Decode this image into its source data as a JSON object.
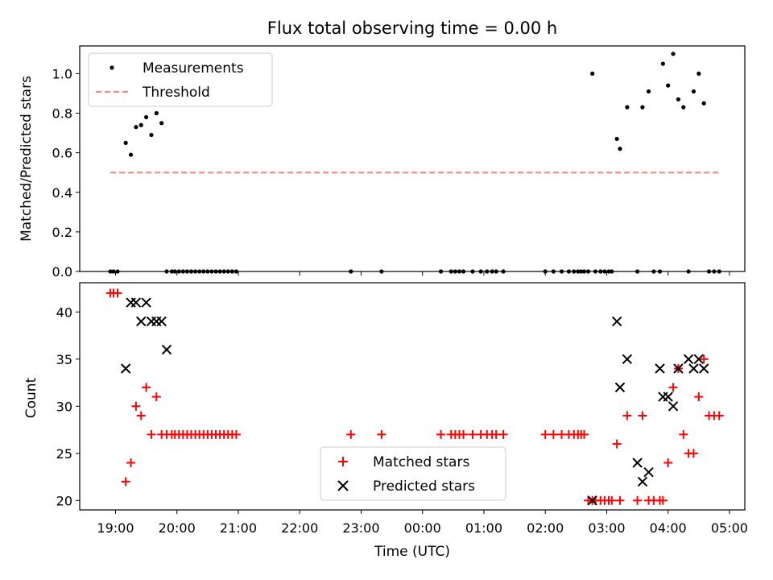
{
  "chart_data": [
    {
      "type": "scatter",
      "title": "Flux total observing time = 0.00 h",
      "xlabel": "",
      "ylabel": "Matched/Predicted stars",
      "xlim": [
        "2000-01-01 18:25",
        "2000-01-02 05:15"
      ],
      "ylim": [
        0,
        1.14
      ],
      "yticks": [
        0.0,
        0.2,
        0.4,
        0.6,
        0.8,
        1.0
      ],
      "ytick_labels": [
        "0.0",
        "0.2",
        "0.4",
        "0.6",
        "0.8",
        "1.0"
      ],
      "grid": false,
      "legend": "top-left",
      "series": [
        {
          "name": "Measurements",
          "kind": "points",
          "color": "#000000",
          "x": [
            "18:55",
            "18:58",
            "19:02",
            "19:10",
            "19:15",
            "19:20",
            "19:25",
            "19:30",
            "19:35",
            "19:40",
            "19:45",
            "19:50",
            "19:55",
            "19:58",
            "20:02",
            "20:06",
            "20:10",
            "20:14",
            "20:18",
            "20:22",
            "20:26",
            "20:30",
            "20:34",
            "20:38",
            "20:42",
            "20:46",
            "20:50",
            "20:54",
            "20:58",
            "22:50",
            "23:20",
            "00:18",
            "00:28",
            "00:32",
            "00:36",
            "00:40",
            "00:49",
            "00:57",
            "01:03",
            "01:08",
            "01:12",
            "01:19",
            "02:00",
            "02:08",
            "02:16",
            "02:23",
            "02:28",
            "02:32",
            "02:35",
            "02:38",
            "02:42",
            "02:46",
            "02:49",
            "02:54",
            "02:58",
            "03:02",
            "03:05",
            "03:10",
            "03:13",
            "03:20",
            "03:30",
            "03:35",
            "03:41",
            "03:46",
            "03:52",
            "03:55",
            "04:00",
            "04:05",
            "04:10",
            "04:15",
            "04:20",
            "04:25",
            "04:30",
            "04:35",
            "04:40",
            "04:45",
            "04:50"
          ],
          "y": [
            0,
            0,
            0,
            0.65,
            0.59,
            0.73,
            0.74,
            0.78,
            0.69,
            0.8,
            0.75,
            0,
            0,
            0,
            0,
            0,
            0,
            0,
            0,
            0,
            0,
            0,
            0,
            0,
            0,
            0,
            0,
            0,
            0,
            0,
            0,
            0,
            0,
            0,
            0,
            0,
            0,
            0,
            0,
            0,
            0,
            0,
            0,
            0,
            0,
            0,
            0,
            0,
            0,
            0,
            0,
            1.0,
            0,
            0,
            0,
            0,
            0,
            0.67,
            0.62,
            0.83,
            0,
            0.83,
            0.91,
            0,
            0,
            1.05,
            0.94,
            1.1,
            0.87,
            0.83,
            0,
            0.91,
            1.0,
            0.85,
            0,
            0,
            0
          ]
        },
        {
          "name": "Threshold",
          "kind": "dashed-line",
          "color": "#ff7f7f",
          "x": [
            "18:55",
            "04:50"
          ],
          "y": [
            0.5,
            0.5
          ]
        }
      ]
    },
    {
      "type": "scatter",
      "title": "",
      "xlabel": "Time (UTC)",
      "ylabel": "Count",
      "xlim": [
        "2000-01-01 18:25",
        "2000-01-02 05:15"
      ],
      "ylim": [
        19.0,
        43.1
      ],
      "yticks": [
        20,
        25,
        30,
        35,
        40
      ],
      "ytick_labels": [
        "20",
        "25",
        "30",
        "35",
        "40"
      ],
      "xticks": [
        "2000-01-01 19:00",
        "2000-01-01 20:00",
        "2000-01-01 21:00",
        "2000-01-01 22:00",
        "2000-01-01 23:00",
        "2000-01-02 00:00",
        "2000-01-02 01:00",
        "2000-01-02 02:00",
        "2000-01-02 03:00",
        "2000-01-02 04:00",
        "2000-01-02 05:00"
      ],
      "xtick_labels": [
        "19:00",
        "20:00",
        "21:00",
        "22:00",
        "23:00",
        "00:00",
        "01:00",
        "02:00",
        "03:00",
        "04:00",
        "05:00"
      ],
      "grid": false,
      "legend": "lower-center",
      "series": [
        {
          "name": "Matched stars",
          "marker": "plus",
          "color": "#ff0000",
          "x": [
            "18:55",
            "18:58",
            "19:02",
            "19:10",
            "19:15",
            "19:20",
            "19:25",
            "19:30",
            "19:35",
            "19:40",
            "19:45",
            "19:50",
            "19:55",
            "19:58",
            "20:02",
            "20:06",
            "20:10",
            "20:14",
            "20:18",
            "20:22",
            "20:26",
            "20:30",
            "20:34",
            "20:38",
            "20:42",
            "20:46",
            "20:50",
            "20:54",
            "20:58",
            "22:50",
            "23:20",
            "00:18",
            "00:28",
            "00:32",
            "00:36",
            "00:40",
            "00:49",
            "00:57",
            "01:03",
            "01:08",
            "01:12",
            "01:19",
            "02:00",
            "02:08",
            "02:16",
            "02:23",
            "02:28",
            "02:32",
            "02:35",
            "02:38",
            "02:42",
            "02:46",
            "02:49",
            "02:54",
            "02:58",
            "03:02",
            "03:05",
            "03:10",
            "03:13",
            "03:20",
            "03:30",
            "03:35",
            "03:41",
            "03:46",
            "03:52",
            "03:55",
            "04:00",
            "04:05",
            "04:10",
            "04:15",
            "04:20",
            "04:25",
            "04:30",
            "04:35",
            "04:40",
            "04:45",
            "04:50"
          ],
          "y": [
            42,
            42,
            42,
            22,
            24,
            30,
            29,
            32,
            27,
            31,
            27,
            27,
            27,
            27,
            27,
            27,
            27,
            27,
            27,
            27,
            27,
            27,
            27,
            27,
            27,
            27,
            27,
            27,
            27,
            27,
            27,
            27,
            27,
            27,
            27,
            27,
            27,
            27,
            27,
            27,
            27,
            27,
            27,
            27,
            27,
            27,
            27,
            27,
            27,
            27,
            20,
            20,
            20,
            20,
            20,
            20,
            20,
            26,
            20,
            29,
            20,
            29,
            20,
            20,
            20,
            20,
            24,
            32,
            34,
            27,
            25,
            25,
            31,
            35,
            29,
            29,
            29
          ]
        },
        {
          "name": "Predicted stars",
          "marker": "x",
          "color": "#000000",
          "x": [
            "19:10",
            "19:15",
            "19:20",
            "19:25",
            "19:30",
            "19:35",
            "19:40",
            "19:45",
            "19:50",
            "02:46",
            "03:10",
            "03:13",
            "03:20",
            "03:30",
            "03:35",
            "03:41",
            "03:52",
            "03:55",
            "04:00",
            "04:05",
            "04:10",
            "04:20",
            "04:25",
            "04:30",
            "04:35"
          ],
          "y": [
            34,
            41,
            41,
            39,
            41,
            39,
            39,
            39,
            36,
            20,
            39,
            32,
            35,
            24,
            22,
            23,
            34,
            31,
            31,
            30,
            34,
            35,
            34,
            35,
            34
          ]
        }
      ]
    }
  ]
}
